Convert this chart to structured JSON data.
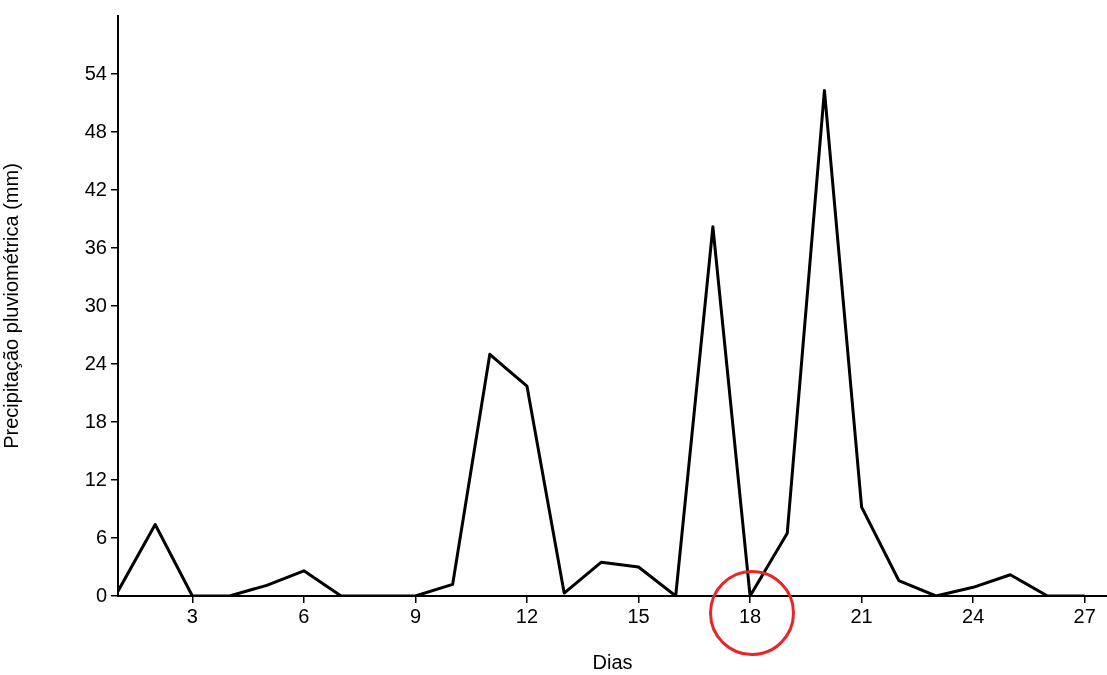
{
  "chart_data": {
    "type": "line",
    "xlabel": "Dias",
    "ylabel": "Precipitação pluviométrica (mm)",
    "x": [
      1,
      2,
      3,
      4,
      5,
      6,
      7,
      8,
      9,
      10,
      11,
      12,
      13,
      14,
      15,
      16,
      17,
      18,
      19,
      20,
      21,
      22,
      23,
      24,
      25,
      26,
      27
    ],
    "series": [
      {
        "color": "#000000",
        "values": [
          0.5,
          7.4,
          0,
          0,
          1.1,
          2.6,
          0,
          0,
          0,
          1.2,
          25,
          21.7,
          0.3,
          3.5,
          3,
          0,
          38.2,
          0,
          6.5,
          52.3,
          9.2,
          1.6,
          0,
          0.9,
          2.2,
          0,
          0
        ]
      }
    ],
    "xlim": [
      1,
      27.6
    ],
    "xticks": [
      3,
      6,
      9,
      12,
      15,
      18,
      21,
      24,
      27
    ],
    "ylim": [
      0,
      60
    ],
    "yticks": [
      0,
      6,
      12,
      18,
      24,
      30,
      36,
      42,
      48,
      54
    ],
    "grid": false,
    "legend": false,
    "marker": "none",
    "line_style": "solid"
  }
}
